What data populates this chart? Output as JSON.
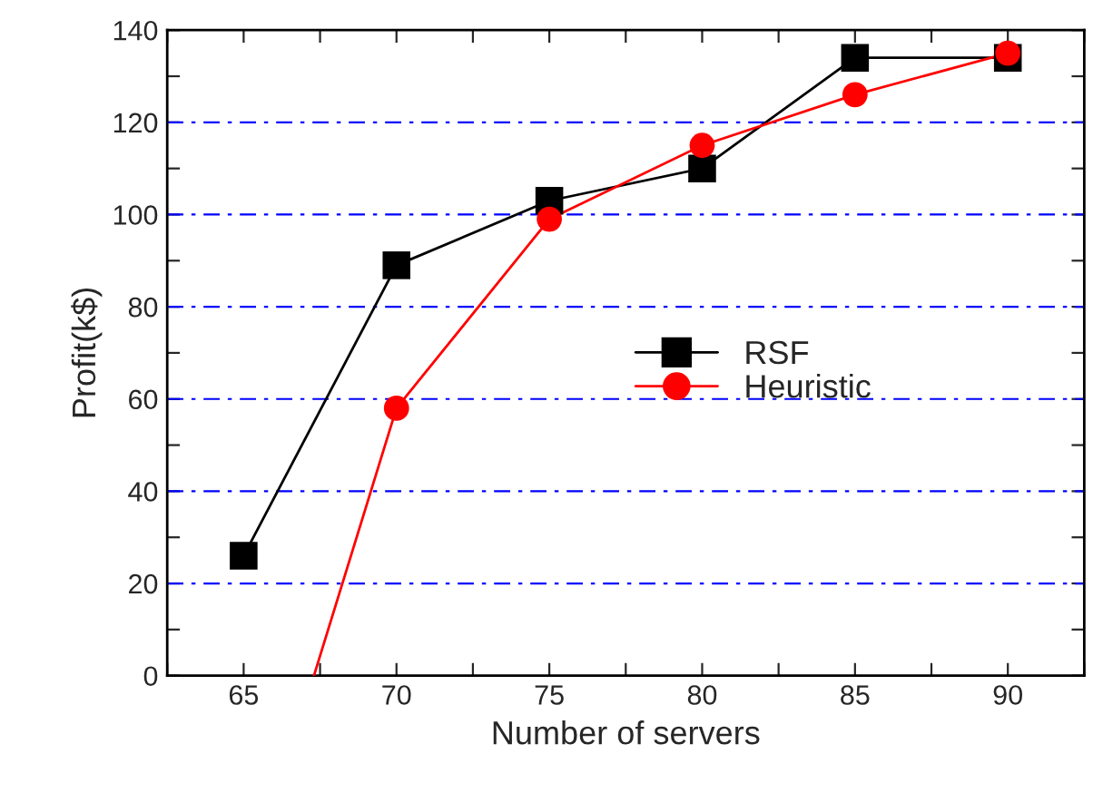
{
  "chart_data": {
    "type": "line",
    "xlabel": "Number of servers",
    "ylabel": "Profit(k$)",
    "xlim": [
      62.5,
      92.5
    ],
    "ylim": [
      0,
      140
    ],
    "xticks": [
      {
        "value": 62.5,
        "label": null
      },
      65,
      {
        "value": 67.5,
        "label": null
      },
      70,
      {
        "value": 72.5,
        "label": null
      },
      75,
      {
        "value": 77.5,
        "label": null
      },
      80,
      {
        "value": 82.5,
        "label": null
      },
      85,
      {
        "value": 87.5,
        "label": null
      },
      90,
      {
        "value": 92.5,
        "label": null
      }
    ],
    "yticks": [
      0,
      {
        "value": 10,
        "label": null
      },
      20,
      {
        "value": 30,
        "label": null
      },
      40,
      {
        "value": 50,
        "label": null
      },
      60,
      {
        "value": 70,
        "label": null
      },
      80,
      {
        "value": 90,
        "label": null
      },
      100,
      {
        "value": 110,
        "label": null
      },
      120,
      {
        "value": 130,
        "label": null
      },
      140
    ],
    "grid": "y",
    "legend": "center right",
    "series": [
      {
        "name": "RSF",
        "color": "#000000",
        "marker": "square",
        "x": [
          65,
          70,
          75,
          80,
          85,
          90
        ],
        "values": [
          26,
          89,
          103,
          110,
          134,
          134
        ]
      },
      {
        "name": "Heuristic",
        "color": "#ff0000",
        "marker": "circle",
        "x": [
          67.3,
          70,
          75,
          80,
          85,
          90
        ],
        "values": [
          0,
          58,
          99,
          115,
          126,
          135
        ]
      }
    ]
  }
}
